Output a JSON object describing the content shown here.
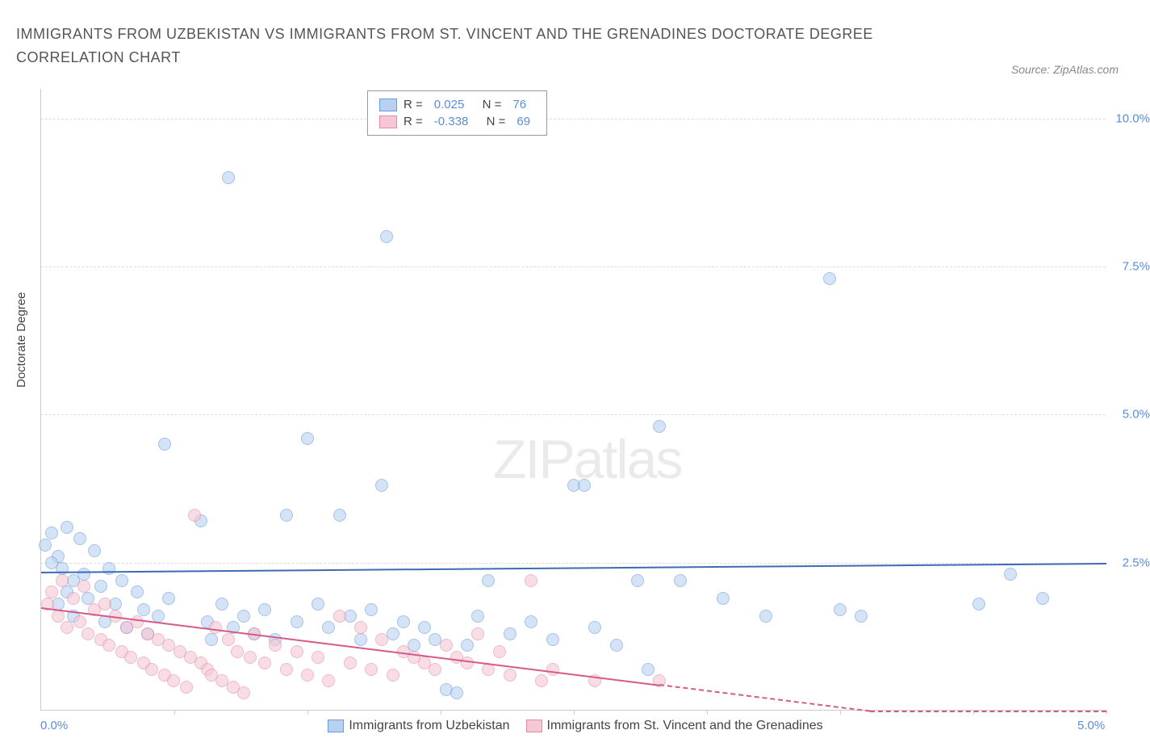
{
  "title": "IMMIGRANTS FROM UZBEKISTAN VS IMMIGRANTS FROM ST. VINCENT AND THE GRENADINES DOCTORATE DEGREE CORRELATION CHART",
  "source": "Source: ZipAtlas.com",
  "yaxis_title": "Doctorate Degree",
  "watermark": "ZIPatlas",
  "chart": {
    "type": "scatter",
    "xlim": [
      0,
      5.0
    ],
    "ylim": [
      0,
      10.5
    ],
    "ytick_step": 2.5,
    "yticks": [
      {
        "val": 2.5,
        "label": "2.5%"
      },
      {
        "val": 5.0,
        "label": "5.0%"
      },
      {
        "val": 7.5,
        "label": "7.5%"
      },
      {
        "val": 10.0,
        "label": "10.0%"
      }
    ],
    "xticks": [
      {
        "val": 0,
        "label": "0.0%"
      },
      {
        "val": 5.0,
        "label": "5.0%"
      }
    ],
    "xtick_marks": [
      0.625,
      1.25,
      1.875,
      2.5,
      3.125,
      3.75,
      4.375,
      5.0
    ],
    "background_color": "#ffffff",
    "grid_color": "#dddddd",
    "axis_color": "#cccccc",
    "marker_radius": 8,
    "marker_opacity": 0.6
  },
  "series": [
    {
      "name": "Immigrants from Uzbekistan",
      "color_fill": "#b9d1f0",
      "color_stroke": "#6a9bdc",
      "trend_color": "#3b6cb5",
      "R": "0.025",
      "N": "76",
      "trend": {
        "x1": 0,
        "y1": 2.35,
        "x2": 5.0,
        "y2": 2.5,
        "solid_until": 5.0
      },
      "points": [
        [
          0.02,
          2.8
        ],
        [
          0.05,
          3.0
        ],
        [
          0.08,
          2.6
        ],
        [
          0.1,
          2.4
        ],
        [
          0.12,
          3.1
        ],
        [
          0.15,
          2.2
        ],
        [
          0.18,
          2.9
        ],
        [
          0.05,
          2.5
        ],
        [
          0.08,
          1.8
        ],
        [
          0.12,
          2.0
        ],
        [
          0.15,
          1.6
        ],
        [
          0.2,
          2.3
        ],
        [
          0.22,
          1.9
        ],
        [
          0.25,
          2.7
        ],
        [
          0.28,
          2.1
        ],
        [
          0.3,
          1.5
        ],
        [
          0.32,
          2.4
        ],
        [
          0.35,
          1.8
        ],
        [
          0.38,
          2.2
        ],
        [
          0.4,
          1.4
        ],
        [
          0.45,
          2.0
        ],
        [
          0.48,
          1.7
        ],
        [
          0.5,
          1.3
        ],
        [
          0.55,
          1.6
        ],
        [
          0.58,
          4.5
        ],
        [
          0.6,
          1.9
        ],
        [
          0.75,
          3.2
        ],
        [
          0.78,
          1.5
        ],
        [
          0.8,
          1.2
        ],
        [
          0.85,
          1.8
        ],
        [
          0.88,
          9.0
        ],
        [
          0.9,
          1.4
        ],
        [
          0.95,
          1.6
        ],
        [
          1.0,
          1.3
        ],
        [
          1.05,
          1.7
        ],
        [
          1.1,
          1.2
        ],
        [
          1.15,
          3.3
        ],
        [
          1.2,
          1.5
        ],
        [
          1.25,
          4.6
        ],
        [
          1.3,
          1.8
        ],
        [
          1.35,
          1.4
        ],
        [
          1.4,
          3.3
        ],
        [
          1.45,
          1.6
        ],
        [
          1.5,
          1.2
        ],
        [
          1.55,
          1.7
        ],
        [
          1.6,
          3.8
        ],
        [
          1.62,
          8.0
        ],
        [
          1.65,
          1.3
        ],
        [
          1.7,
          1.5
        ],
        [
          1.75,
          1.1
        ],
        [
          1.8,
          1.4
        ],
        [
          1.85,
          1.2
        ],
        [
          1.9,
          0.35
        ],
        [
          1.95,
          0.3
        ],
        [
          2.0,
          1.1
        ],
        [
          2.05,
          1.6
        ],
        [
          2.1,
          2.2
        ],
        [
          2.2,
          1.3
        ],
        [
          2.3,
          1.5
        ],
        [
          2.4,
          1.2
        ],
        [
          2.5,
          3.8
        ],
        [
          2.55,
          3.8
        ],
        [
          2.6,
          1.4
        ],
        [
          2.7,
          1.1
        ],
        [
          2.8,
          2.2
        ],
        [
          2.85,
          0.7
        ],
        [
          2.9,
          4.8
        ],
        [
          3.0,
          2.2
        ],
        [
          3.2,
          1.9
        ],
        [
          3.4,
          1.6
        ],
        [
          3.7,
          7.3
        ],
        [
          3.75,
          1.7
        ],
        [
          3.85,
          1.6
        ],
        [
          4.55,
          2.3
        ],
        [
          4.7,
          1.9
        ],
        [
          4.4,
          1.8
        ]
      ]
    },
    {
      "name": "Immigrants from St. Vincent and the Grenadines",
      "color_fill": "#f6c7d4",
      "color_stroke": "#e38ba6",
      "trend_color": "#d65a87",
      "R": "-0.338",
      "N": "69",
      "trend": {
        "x1": 0,
        "y1": 1.75,
        "x2": 5.0,
        "y2": -0.5,
        "solid_until": 2.9
      },
      "points": [
        [
          0.03,
          1.8
        ],
        [
          0.05,
          2.0
        ],
        [
          0.08,
          1.6
        ],
        [
          0.1,
          2.2
        ],
        [
          0.12,
          1.4
        ],
        [
          0.15,
          1.9
        ],
        [
          0.18,
          1.5
        ],
        [
          0.2,
          2.1
        ],
        [
          0.22,
          1.3
        ],
        [
          0.25,
          1.7
        ],
        [
          0.28,
          1.2
        ],
        [
          0.3,
          1.8
        ],
        [
          0.32,
          1.1
        ],
        [
          0.35,
          1.6
        ],
        [
          0.38,
          1.0
        ],
        [
          0.4,
          1.4
        ],
        [
          0.42,
          0.9
        ],
        [
          0.45,
          1.5
        ],
        [
          0.48,
          0.8
        ],
        [
          0.5,
          1.3
        ],
        [
          0.52,
          0.7
        ],
        [
          0.55,
          1.2
        ],
        [
          0.58,
          0.6
        ],
        [
          0.6,
          1.1
        ],
        [
          0.62,
          0.5
        ],
        [
          0.65,
          1.0
        ],
        [
          0.68,
          0.4
        ],
        [
          0.7,
          0.9
        ],
        [
          0.72,
          3.3
        ],
        [
          0.75,
          0.8
        ],
        [
          0.78,
          0.7
        ],
        [
          0.8,
          0.6
        ],
        [
          0.82,
          1.4
        ],
        [
          0.85,
          0.5
        ],
        [
          0.88,
          1.2
        ],
        [
          0.9,
          0.4
        ],
        [
          0.92,
          1.0
        ],
        [
          0.95,
          0.3
        ],
        [
          0.98,
          0.9
        ],
        [
          1.0,
          1.3
        ],
        [
          1.05,
          0.8
        ],
        [
          1.1,
          1.1
        ],
        [
          1.15,
          0.7
        ],
        [
          1.2,
          1.0
        ],
        [
          1.25,
          0.6
        ],
        [
          1.3,
          0.9
        ],
        [
          1.35,
          0.5
        ],
        [
          1.4,
          1.6
        ],
        [
          1.45,
          0.8
        ],
        [
          1.5,
          1.4
        ],
        [
          1.55,
          0.7
        ],
        [
          1.6,
          1.2
        ],
        [
          1.65,
          0.6
        ],
        [
          1.7,
          1.0
        ],
        [
          1.75,
          0.9
        ],
        [
          1.8,
          0.8
        ],
        [
          1.85,
          0.7
        ],
        [
          1.9,
          1.1
        ],
        [
          1.95,
          0.9
        ],
        [
          2.0,
          0.8
        ],
        [
          2.05,
          1.3
        ],
        [
          2.1,
          0.7
        ],
        [
          2.15,
          1.0
        ],
        [
          2.2,
          0.6
        ],
        [
          2.3,
          2.2
        ],
        [
          2.35,
          0.5
        ],
        [
          2.4,
          0.7
        ],
        [
          2.6,
          0.5
        ],
        [
          2.9,
          0.5
        ]
      ]
    }
  ],
  "legend_labels": {
    "R_prefix": "R = ",
    "N_prefix": "N = "
  }
}
